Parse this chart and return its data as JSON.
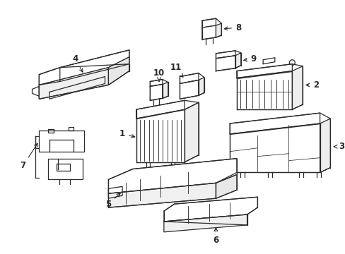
{
  "background_color": "#ffffff",
  "line_color": "#2a2a2a",
  "label_color": "#000000",
  "figsize": [
    4.89,
    3.6
  ],
  "dpi": 100,
  "lw": 0.9,
  "label_fontsize": 8.5
}
